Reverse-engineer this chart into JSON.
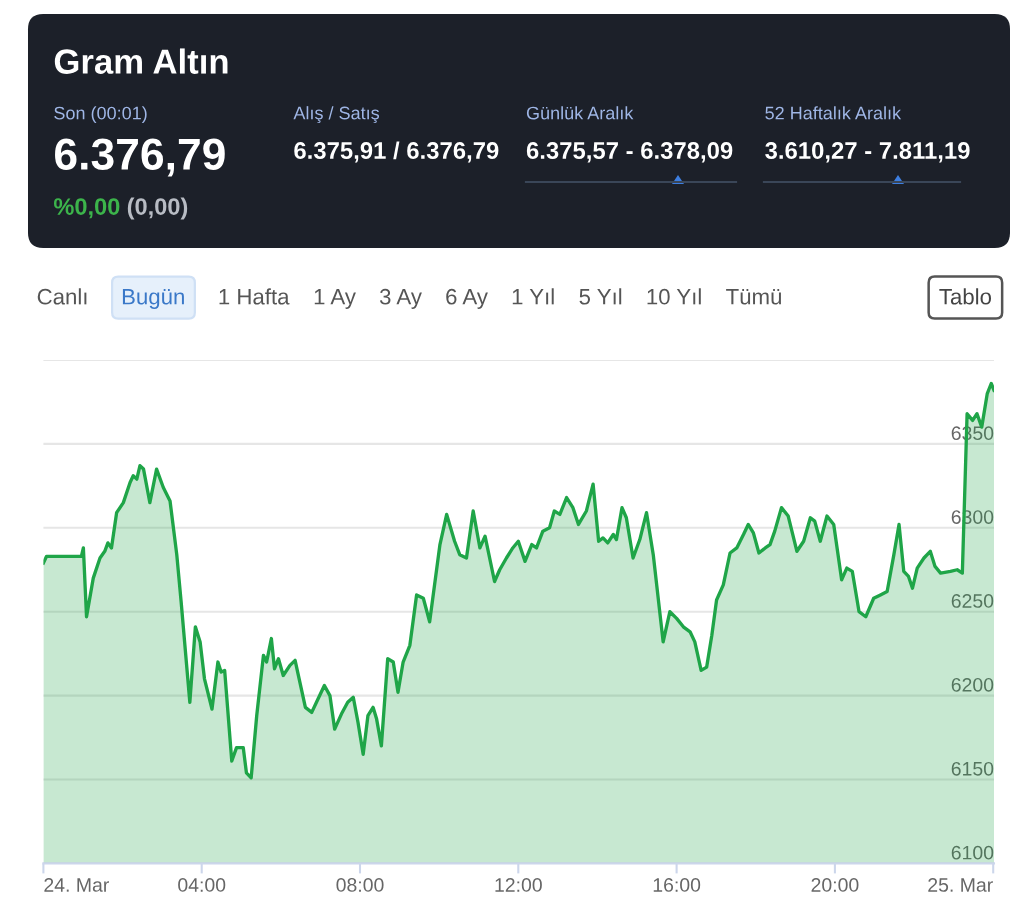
{
  "chart_data": {
    "type": "area",
    "title": "Gram Altın",
    "annotations": [
      "Son (00:01)",
      "6.376,79",
      "%0,00",
      "(0,00)",
      "Alış / Satış",
      "6.375,91 / 6.376,79",
      "Günlük Aralık",
      "6.375,57 - 6.378,09",
      "52 Haftalık Aralık",
      "3.610,27 - 7.811,19",
      "Canlı",
      "Bugün",
      "1 Hafta",
      "1 Ay",
      "3 Ay",
      "6 Ay",
      "1 Yıl",
      "5 Yıl",
      "10 Yıl",
      "Tümü",
      "Tablo"
    ],
    "x": [
      0,
      0.08,
      0.96,
      1.01,
      1.09,
      1.26,
      1.43,
      1.55,
      1.63,
      1.72,
      1.85,
      2.02,
      2.19,
      2.27,
      2.36,
      2.44,
      2.53,
      2.69,
      2.86,
      3.03,
      3.2,
      3.37,
      3.48,
      3.7,
      3.84,
      3.96,
      4.07,
      4.26,
      4.41,
      4.49,
      4.58,
      4.76,
      4.88,
      5.05,
      5.13,
      5.25,
      5.39,
      5.56,
      5.64,
      5.76,
      5.84,
      5.94,
      6.06,
      6.23,
      6.36,
      6.48,
      6.62,
      6.78,
      6.9,
      7.1,
      7.24,
      7.36,
      7.53,
      7.69,
      7.83,
      7.95,
      8.08,
      8.2,
      8.33,
      8.42,
      8.54,
      8.7,
      8.84,
      8.96,
      9.09,
      9.26,
      9.43,
      9.6,
      9.76,
      10.02,
      10.19,
      10.39,
      10.52,
      10.69,
      10.86,
      11.03,
      11.16,
      11.4,
      11.53,
      11.7,
      11.86,
      12.0,
      12.17,
      12.34,
      12.46,
      12.62,
      12.79,
      12.91,
      13.05,
      13.22,
      13.38,
      13.52,
      13.72,
      13.89,
      14.03,
      14.14,
      14.26,
      14.4,
      14.48,
      14.62,
      14.73,
      14.9,
      15.07,
      15.24,
      15.41,
      15.66,
      15.83,
      16.0,
      16.17,
      16.34,
      16.46,
      16.62,
      16.76,
      16.89,
      17.01,
      17.18,
      17.35,
      17.52,
      17.69,
      17.81,
      17.94,
      18.08,
      18.24,
      18.36,
      18.48,
      18.65,
      18.82,
      19.04,
      19.21,
      19.38,
      19.49,
      19.63,
      19.8,
      19.97,
      20.17,
      20.3,
      20.44,
      20.61,
      20.78,
      20.98,
      21.15,
      21.32,
      21.49,
      21.62,
      21.74,
      21.86,
      21.96,
      22.08,
      22.25,
      22.41,
      22.53,
      22.67,
      22.92,
      23.09,
      23.22,
      23.34,
      23.48,
      23.59,
      23.71,
      23.85,
      23.95,
      24.02
    ],
    "series": [
      {
        "color": "#1fa548",
        "values": [
          6279,
          6283,
          6283,
          6288,
          6247,
          6270,
          6282,
          6286,
          6291,
          6288,
          6309,
          6315,
          6327,
          6331,
          6329,
          6337,
          6335,
          6315,
          6335,
          6324,
          6316,
          6284,
          6256,
          6196,
          6241,
          6232,
          6210,
          6192,
          6220,
          6214,
          6215,
          6161,
          6169,
          6169,
          6154,
          6151,
          6188,
          6224,
          6220,
          6234,
          6216,
          6222,
          6212,
          6218,
          6221,
          6208,
          6193,
          6190,
          6196,
          6206,
          6200,
          6180,
          6189,
          6196,
          6199,
          6184,
          6165,
          6188,
          6193,
          6186,
          6170,
          6222,
          6220,
          6202,
          6220,
          6230,
          6260,
          6258,
          6244,
          6290,
          6308,
          6292,
          6284,
          6282,
          6310,
          6288,
          6295,
          6268,
          6275,
          6282,
          6288,
          6292,
          6280,
          6290,
          6288,
          6298,
          6300,
          6310,
          6308,
          6318,
          6312,
          6302,
          6310,
          6326,
          6292,
          6294,
          6291,
          6296,
          6293,
          6312,
          6306,
          6282,
          6293,
          6309,
          6284,
          6232,
          6250,
          6246,
          6241,
          6238,
          6232,
          6215,
          6217,
          6236,
          6257,
          6266,
          6285,
          6288,
          6296,
          6302,
          6297,
          6285,
          6288,
          6290,
          6298,
          6312,
          6307,
          6286,
          6292,
          6306,
          6304,
          6292,
          6307,
          6302,
          6269,
          6276,
          6274,
          6250,
          6247,
          6258,
          6260,
          6262,
          6284,
          6302,
          6274,
          6271,
          6264,
          6276,
          6282,
          6286,
          6277,
          6273,
          6274,
          6275,
          6273,
          6368,
          6364,
          6368,
          6360,
          6380,
          6386,
          6382
        ]
      }
    ],
    "xlim": [
      0,
      24.02
    ],
    "xticks": [
      {
        "value": 0,
        "label": "24. Mar"
      },
      {
        "value": 4,
        "label": "04:00"
      },
      {
        "value": 8,
        "label": "08:00"
      },
      {
        "value": 12,
        "label": "12:00"
      },
      {
        "value": 16,
        "label": "16:00"
      },
      {
        "value": 20,
        "label": "20:00"
      },
      {
        "value": 24,
        "label": "25. Mar"
      }
    ],
    "ylim": [
      6100,
      6400
    ],
    "yticks": [
      6100,
      6150,
      6200,
      6250,
      6300,
      6350,
      {
        "value": 6400,
        "label": null
      }
    ],
    "grid": "y"
  }
}
